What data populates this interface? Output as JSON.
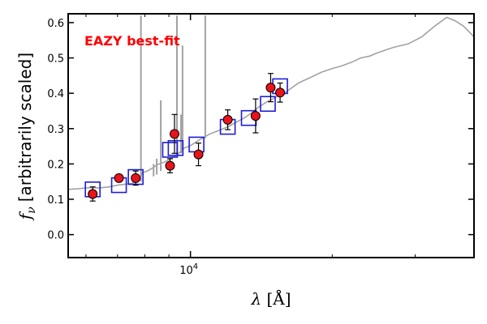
{
  "chart_data": {
    "type": "scatter",
    "title": "",
    "annotation": "EAZY best-fit",
    "xlabel_symbol": "λ",
    "xlabel_unit": "[Å]",
    "ylabel_symbol": "f",
    "ylabel_sub": "ν",
    "ylabel_text": "[arbitrarily scaled]",
    "x_scale": "log",
    "xlim": [
      5500,
      40000
    ],
    "ylim": [
      -0.065,
      0.625
    ],
    "y_ticks": [
      0.0,
      0.1,
      0.2,
      0.3,
      0.4,
      0.5,
      0.6
    ],
    "y_tick_labels": [
      "0.0",
      "0.1",
      "0.2",
      "0.3",
      "0.4",
      "0.5",
      "0.6"
    ],
    "x_ticks": [
      10000
    ],
    "x_tick_labels": [
      "10",
      "4"
    ],
    "grid": false,
    "colors": {
      "observed": "#e8141b",
      "model_box": "#1d1dd6",
      "template": "#a2a2a2",
      "annotation": "#ff0000"
    },
    "series": [
      {
        "name": "Observed photometry",
        "marker": "circle-with-errorbar",
        "x": [
          6200,
          7050,
          7650,
          9050,
          9250,
          10400,
          12000,
          13750,
          14800,
          15500
        ],
        "y": [
          0.115,
          0.16,
          0.16,
          0.195,
          0.285,
          0.227,
          0.325,
          0.336,
          0.416,
          0.402
        ],
        "yerr": [
          0.02,
          0.008,
          0.02,
          0.02,
          0.055,
          0.032,
          0.028,
          0.048,
          0.04,
          0.027
        ]
      },
      {
        "name": "Model fluxes",
        "marker": "open-square",
        "x": [
          6200,
          7050,
          7650,
          9050,
          9300,
          10300,
          12000,
          13300,
          14600,
          15500
        ],
        "y": [
          0.128,
          0.14,
          0.163,
          0.24,
          0.245,
          0.255,
          0.305,
          0.33,
          0.37,
          0.42
        ]
      },
      {
        "name": "EAZY best-fit template",
        "marker": "line",
        "x": [
          5500,
          5800,
          6100,
          6400,
          6700,
          7000,
          7300,
          7500,
          7700,
          7800,
          7900,
          8100,
          8300,
          8500,
          8800,
          9100,
          9400,
          9700,
          10000,
          10500,
          11000,
          11500,
          12000,
          12500,
          13000,
          13500,
          14000,
          14500,
          15000,
          16000,
          17000,
          18000,
          19000,
          20000,
          21000,
          22000,
          23000,
          24000,
          25000,
          27000,
          29000,
          31000,
          33000,
          35000,
          36500,
          38000,
          40000
        ],
        "y": [
          0.128,
          0.13,
          0.133,
          0.132,
          0.135,
          0.14,
          0.143,
          0.145,
          0.15,
          0.155,
          0.175,
          0.18,
          0.188,
          0.198,
          0.205,
          0.215,
          0.228,
          0.245,
          0.252,
          0.27,
          0.285,
          0.295,
          0.305,
          0.318,
          0.33,
          0.345,
          0.362,
          0.375,
          0.385,
          0.405,
          0.43,
          0.445,
          0.46,
          0.47,
          0.478,
          0.488,
          0.5,
          0.505,
          0.515,
          0.53,
          0.54,
          0.56,
          0.59,
          0.615,
          0.605,
          0.59,
          0.56
        ]
      }
    ],
    "emission_lines": [
      {
        "x": 7850,
        "top": 0.62,
        "base": 0.15
      },
      {
        "x": 8350,
        "top": 0.2,
        "base": 0.165
      },
      {
        "x": 8480,
        "top": 0.215,
        "base": 0.17
      },
      {
        "x": 8650,
        "top": 0.38,
        "base": 0.18
      },
      {
        "x": 9360,
        "top": 0.62,
        "base": 0.225
      },
      {
        "x": 9550,
        "top": 0.34,
        "base": 0.23
      },
      {
        "x": 9620,
        "top": 0.535,
        "base": 0.232
      },
      {
        "x": 10750,
        "top": 0.62,
        "base": 0.272
      }
    ]
  }
}
